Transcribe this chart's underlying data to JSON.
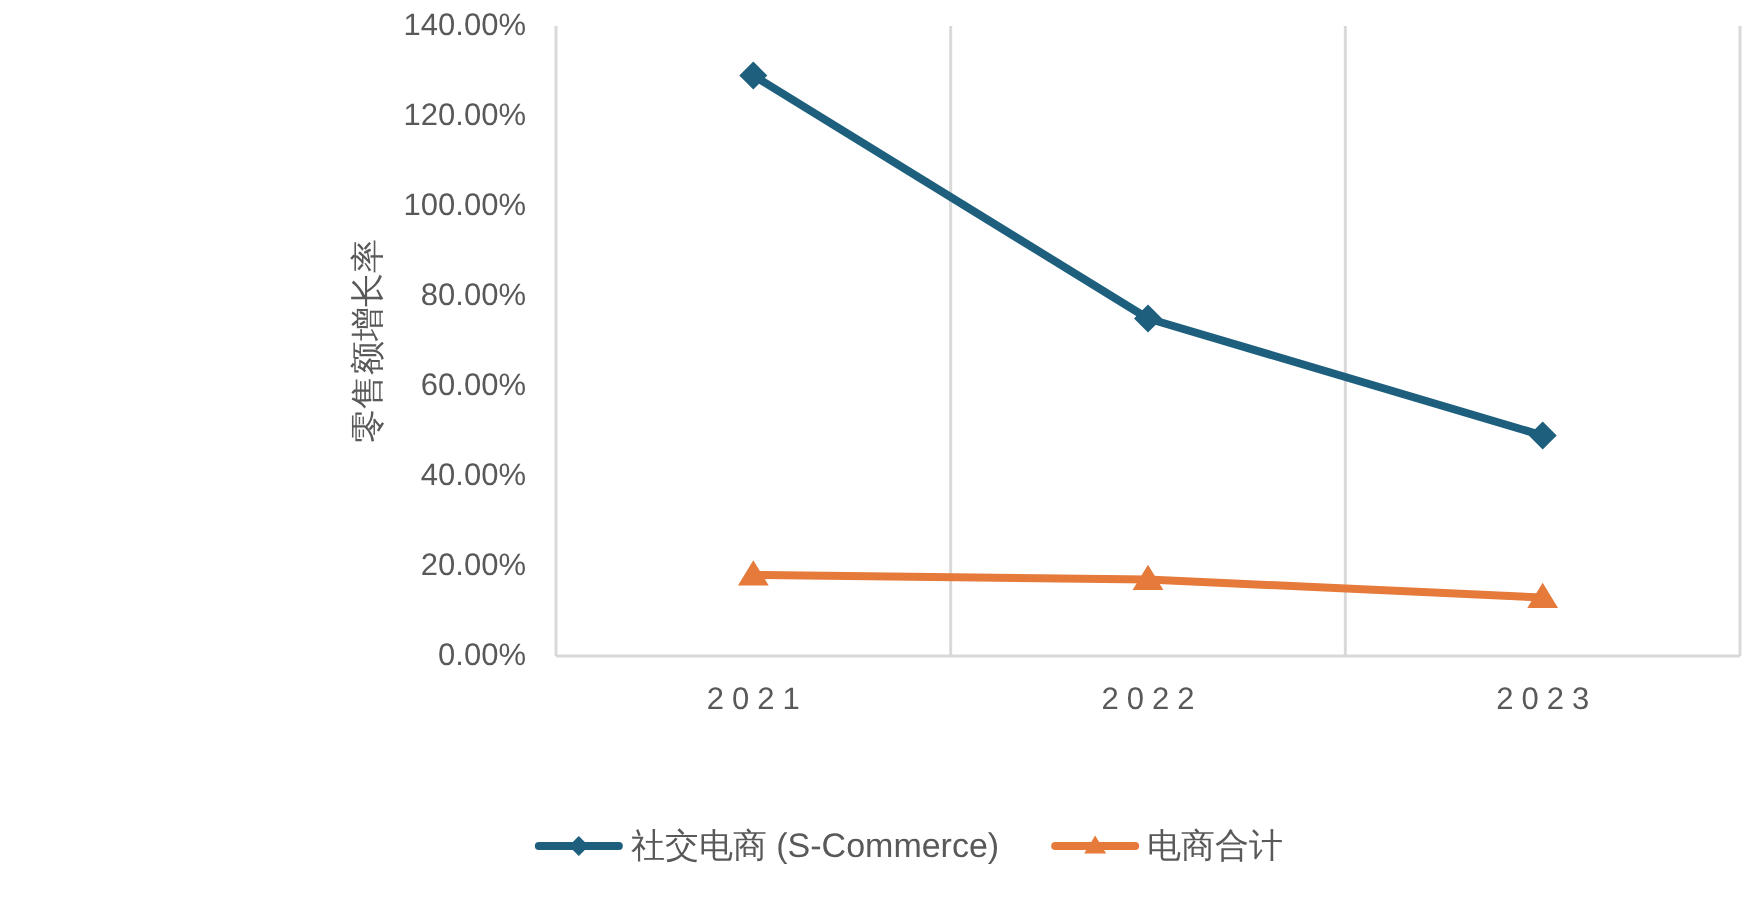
{
  "chart_data": {
    "type": "line",
    "ylabel": "零售额增长率",
    "categories": [
      "2021",
      "2022",
      "2023"
    ],
    "series": [
      {
        "name": "社交电商 (S-Commerce)",
        "color": "#1d5f7d",
        "marker": "diamond",
        "values": [
          129,
          75,
          49
        ]
      },
      {
        "name": "电商合计",
        "color": "#e57a3a",
        "marker": "triangle",
        "values": [
          18,
          17,
          13
        ]
      }
    ],
    "ylim": [
      0,
      140
    ],
    "yticks": [
      {
        "value": 0,
        "label": "0.00%"
      },
      {
        "value": 20,
        "label": "20.00%"
      },
      {
        "value": 40,
        "label": "40.00%"
      },
      {
        "value": 60,
        "label": "60.00%"
      },
      {
        "value": 80,
        "label": "80.00%"
      },
      {
        "value": 100,
        "label": "100.00%"
      },
      {
        "value": 120,
        "label": "120.00%"
      },
      {
        "value": 140,
        "label": "140.00%"
      }
    ],
    "grid": "x",
    "legend": "bottom"
  }
}
